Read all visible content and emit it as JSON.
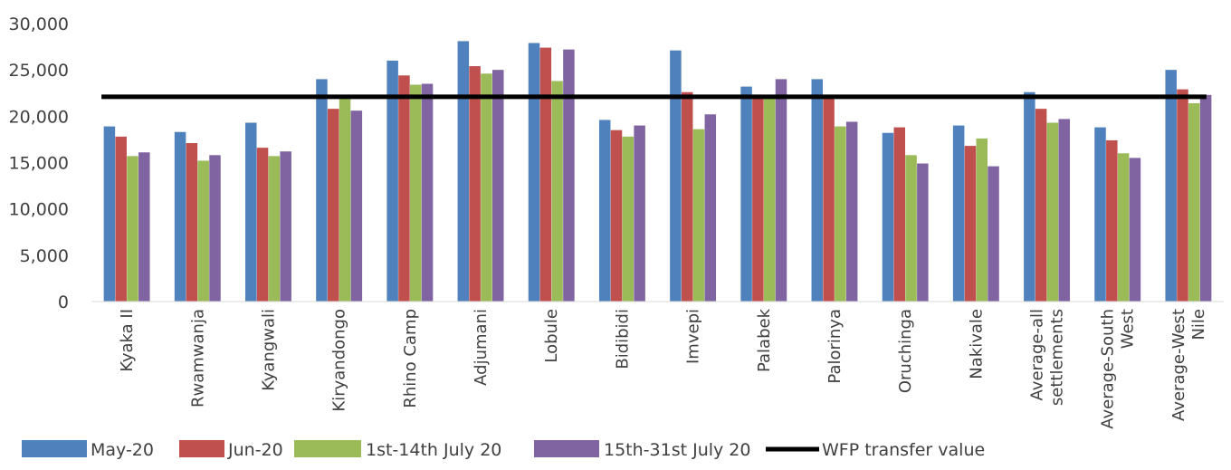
{
  "chart_data": {
    "type": "bar",
    "title": "",
    "xlabel": "",
    "ylabel": "",
    "ylim": [
      0,
      30000
    ],
    "yticks": [
      0,
      5000,
      10000,
      15000,
      20000,
      25000,
      30000
    ],
    "ytick_labels": [
      "0",
      "5,000",
      "10,000",
      "15,000",
      "20,000",
      "25,000",
      "30,000"
    ],
    "grid": false,
    "legend_position": "bottom",
    "categories": [
      [
        "Kyaka II"
      ],
      [
        "Rwamwanja"
      ],
      [
        "Kyangwali"
      ],
      [
        "Kiryandongo"
      ],
      [
        "Rhino Camp"
      ],
      [
        "Adjumani"
      ],
      [
        "Lobule"
      ],
      [
        "Bidibidi"
      ],
      [
        "Imvepi"
      ],
      [
        "Palabek"
      ],
      [
        "Palorinya"
      ],
      [
        "Oruchinga"
      ],
      [
        "Nakivale"
      ],
      [
        "Average-all",
        "settlements"
      ],
      [
        "Average-South",
        "West"
      ],
      [
        "Average-West",
        "Nile"
      ]
    ],
    "series": [
      {
        "name": "May-20",
        "color": "#4F81BD",
        "values": [
          18900,
          18300,
          19300,
          24000,
          26000,
          28100,
          27900,
          19600,
          27100,
          23200,
          24000,
          18200,
          19000,
          22600,
          18800,
          25000
        ]
      },
      {
        "name": "Jun-20",
        "color": "#C0504D",
        "values": [
          17800,
          17100,
          16600,
          20800,
          24400,
          25400,
          27400,
          18500,
          22600,
          22100,
          22000,
          18800,
          16800,
          20800,
          17400,
          22900
        ]
      },
      {
        "name": "1st-14th July 20",
        "color": "#9BBB59",
        "values": [
          15700,
          15200,
          15700,
          22000,
          23400,
          24600,
          23800,
          17800,
          18600,
          22100,
          18900,
          15800,
          17600,
          19300,
          16000,
          21400
        ]
      },
      {
        "name": "15th-31st July 20",
        "color": "#8064A2",
        "values": [
          16100,
          15800,
          16200,
          20600,
          23500,
          25000,
          27200,
          19000,
          20200,
          24000,
          19400,
          14900,
          14600,
          19700,
          15500,
          22300
        ]
      }
    ],
    "reference_line": {
      "name": "WFP transfer value",
      "value": 22100,
      "color": "#000000"
    }
  }
}
